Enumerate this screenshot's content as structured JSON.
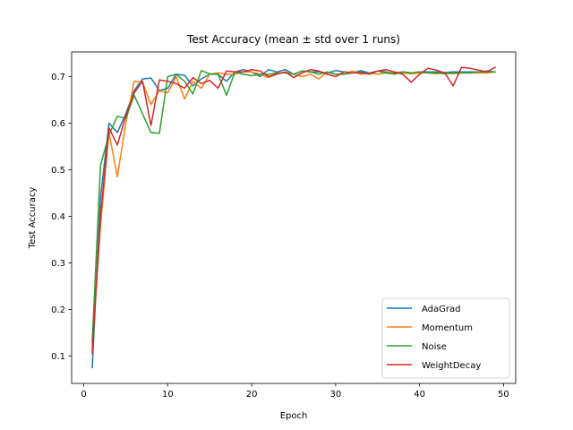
{
  "chart_data": {
    "type": "line",
    "title": "Test Accuracy (mean ± std over 1 runs)",
    "xlabel": "Epoch",
    "ylabel": "Test Accuracy",
    "xlim": [
      -1.45,
      51.45
    ],
    "ylim": [
      0.041,
      0.753
    ],
    "xticks": [
      0,
      10,
      20,
      30,
      40,
      50
    ],
    "yticks": [
      0.1,
      0.2,
      0.3,
      0.4,
      0.5,
      0.6,
      0.7
    ],
    "grid": false,
    "legend_position": "lower-right",
    "x": [
      1,
      2,
      3,
      4,
      5,
      6,
      7,
      8,
      9,
      10,
      11,
      12,
      13,
      14,
      15,
      16,
      17,
      18,
      19,
      20,
      21,
      22,
      23,
      24,
      25,
      26,
      27,
      28,
      29,
      30,
      31,
      32,
      33,
      34,
      35,
      36,
      37,
      38,
      39,
      40,
      41,
      42,
      43,
      44,
      45,
      46,
      47,
      48,
      49
    ],
    "series": [
      {
        "name": "AdaGrad",
        "color": "#1f77b4",
        "values": [
          0.075,
          0.44,
          0.6,
          0.58,
          0.62,
          0.67,
          0.695,
          0.697,
          0.67,
          0.675,
          0.705,
          0.703,
          0.68,
          0.695,
          0.705,
          0.705,
          0.69,
          0.71,
          0.715,
          0.71,
          0.7,
          0.715,
          0.71,
          0.715,
          0.705,
          0.712,
          0.71,
          0.71,
          0.708,
          0.713,
          0.71,
          0.708,
          0.713,
          0.708,
          0.712,
          0.71,
          0.708,
          0.71,
          0.708,
          0.71,
          0.71,
          0.71,
          0.709,
          0.71,
          0.71,
          0.71,
          0.71,
          0.712,
          0.71
        ]
      },
      {
        "name": "Momentum",
        "color": "#ff7f0e",
        "values": [
          0.12,
          0.38,
          0.58,
          0.485,
          0.6,
          0.69,
          0.688,
          0.64,
          0.67,
          0.665,
          0.7,
          0.652,
          0.69,
          0.675,
          0.705,
          0.708,
          0.705,
          0.705,
          0.71,
          0.71,
          0.705,
          0.698,
          0.705,
          0.71,
          0.705,
          0.7,
          0.705,
          0.695,
          0.71,
          0.705,
          0.705,
          0.712,
          0.705,
          0.708,
          0.705,
          0.708,
          0.71,
          0.708,
          0.706,
          0.708,
          0.708,
          0.706,
          0.708,
          0.706,
          0.708,
          0.708,
          0.708,
          0.708,
          0.71
        ]
      },
      {
        "name": "Noise",
        "color": "#2ca02c",
        "values": [
          0.13,
          0.51,
          0.575,
          0.615,
          0.61,
          0.66,
          0.62,
          0.58,
          0.578,
          0.7,
          0.705,
          0.69,
          0.663,
          0.713,
          0.706,
          0.705,
          0.66,
          0.71,
          0.705,
          0.702,
          0.705,
          0.705,
          0.708,
          0.708,
          0.705,
          0.712,
          0.71,
          0.705,
          0.71,
          0.705,
          0.705,
          0.708,
          0.71,
          0.705,
          0.712,
          0.708,
          0.705,
          0.71,
          0.708,
          0.71,
          0.708,
          0.708,
          0.706,
          0.708,
          0.708,
          0.708,
          0.71,
          0.71,
          0.71
        ]
      },
      {
        "name": "WeightDecay",
        "color": "#d62728",
        "values": [
          0.105,
          0.4,
          0.59,
          0.553,
          0.616,
          0.665,
          0.69,
          0.595,
          0.693,
          0.69,
          0.685,
          0.675,
          0.698,
          0.685,
          0.692,
          0.675,
          0.712,
          0.71,
          0.71,
          0.715,
          0.712,
          0.7,
          0.706,
          0.71,
          0.698,
          0.708,
          0.715,
          0.712,
          0.705,
          0.7,
          0.71,
          0.708,
          0.708,
          0.706,
          0.712,
          0.715,
          0.71,
          0.705,
          0.688,
          0.705,
          0.718,
          0.714,
          0.708,
          0.68,
          0.72,
          0.718,
          0.714,
          0.71,
          0.72
        ]
      }
    ]
  }
}
